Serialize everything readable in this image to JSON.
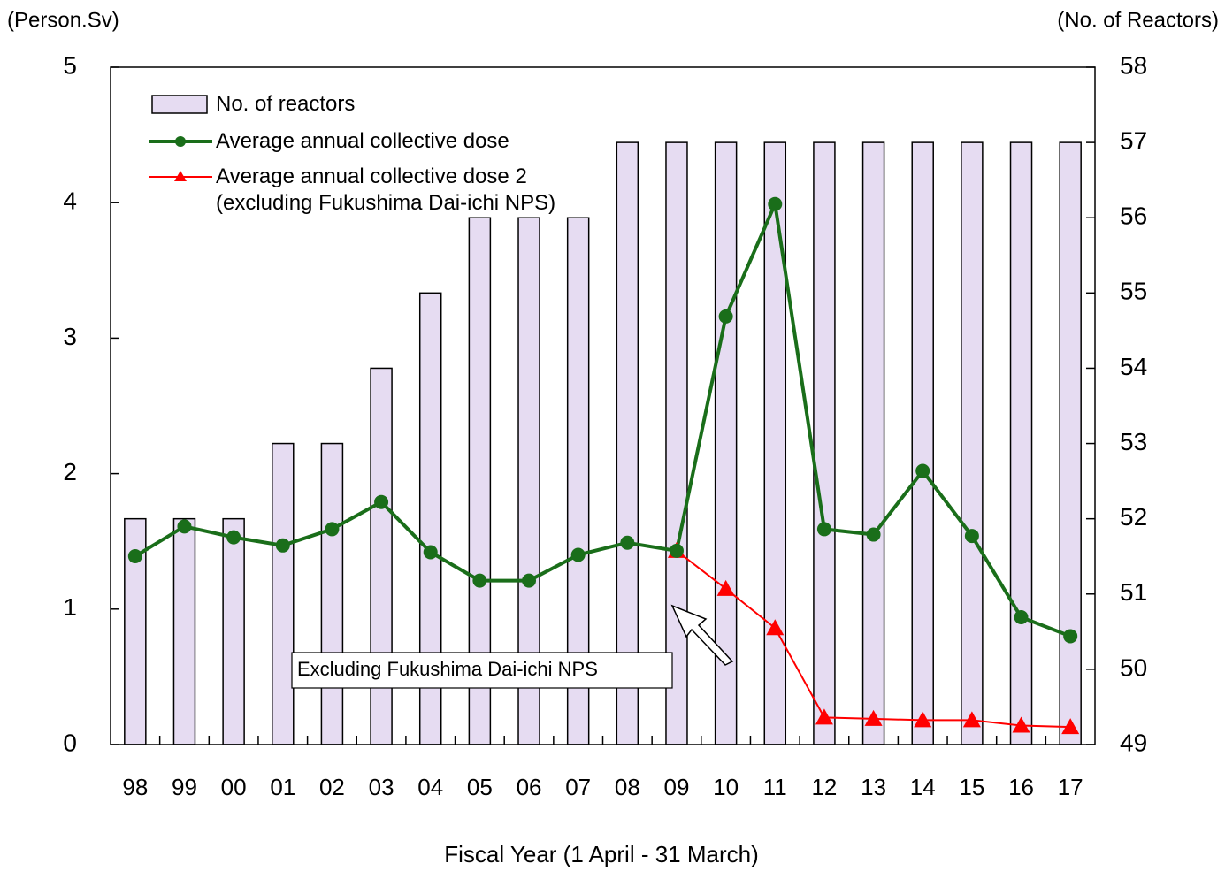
{
  "chart_data": {
    "type": "bar-line",
    "y_label": "(Person.Sv)",
    "y2_label": "(No. of Reactors)",
    "x_label": "Fiscal Year (1 April - 31 March)",
    "annotation": "Excluding Fukushima Dai-ichi NPS",
    "categories": [
      "98",
      "99",
      "00",
      "01",
      "02",
      "03",
      "04",
      "05",
      "06",
      "07",
      "08",
      "09",
      "10",
      "11",
      "12",
      "13",
      "14",
      "15",
      "16",
      "17"
    ],
    "series": [
      {
        "name": "No. of reactors",
        "type": "bar",
        "axis": "y2",
        "color": "#e6dcf2",
        "values": [
          52,
          52,
          52,
          53,
          53,
          54,
          55,
          56,
          56,
          56,
          57,
          57,
          57,
          57,
          57,
          57,
          57,
          57,
          57,
          57
        ]
      },
      {
        "name": "Average annual collective dose",
        "type": "line",
        "marker": "circle",
        "color": "#1a6e1a",
        "values": [
          1.39,
          1.61,
          1.53,
          1.47,
          1.59,
          1.79,
          1.42,
          1.21,
          1.21,
          1.4,
          1.49,
          1.43,
          3.16,
          3.99,
          1.59,
          1.55,
          2.02,
          1.54,
          0.94,
          0.8
        ]
      },
      {
        "name": "Average annual collective dose 2\n(excluding Fukushima Dai-ichi NPS)",
        "type": "line",
        "marker": "triangle",
        "color": "#ff0000",
        "values": [
          null,
          null,
          null,
          null,
          null,
          null,
          null,
          null,
          null,
          null,
          null,
          1.43,
          1.15,
          0.86,
          0.2,
          0.19,
          0.18,
          0.18,
          0.14,
          0.13
        ]
      }
    ],
    "ylim": [
      0,
      5
    ],
    "yticks": [
      0,
      1,
      2,
      3,
      4,
      5
    ],
    "y2lim": [
      49,
      58
    ],
    "y2ticks": [
      49,
      50,
      51,
      52,
      53,
      54,
      55,
      56,
      57,
      58
    ],
    "legend": "upper left"
  }
}
